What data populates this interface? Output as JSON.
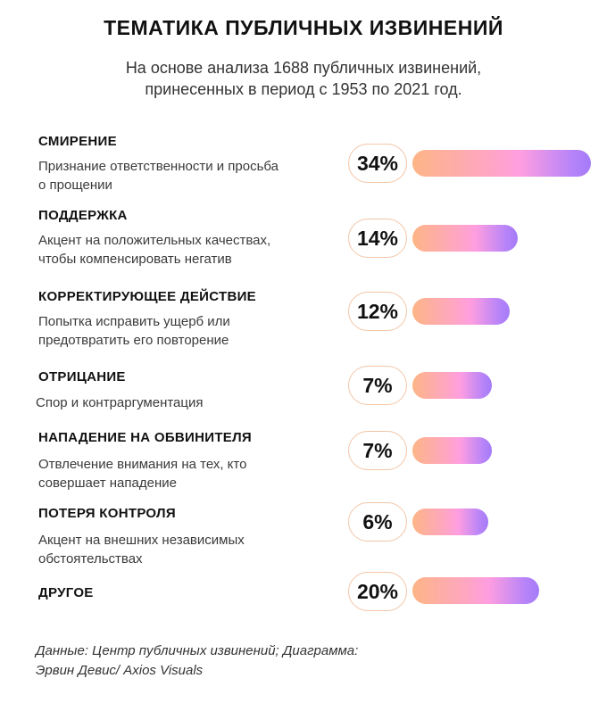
{
  "header": {
    "title": "ТЕМАТИКА ПУБЛИЧНЫХ ИЗВИНЕНИЙ",
    "subtitle_line1": "На основе анализа 1688 публичных извинений,",
    "subtitle_line2": "принесенных в период с 1953 по 2021 год."
  },
  "chart_data": {
    "type": "bar",
    "title": "ТЕМАТИКА ПУБЛИЧНЫХ ИЗВИНЕНИЙ",
    "xlim": [
      0,
      34
    ],
    "categories": [
      {
        "name": "СМИРЕНИЕ",
        "description": "Признание ответственности и просьба о прощении",
        "desc_line1": "Признание ответственности и просьба",
        "desc_line2": "о прощении",
        "value": 34,
        "label": "34%"
      },
      {
        "name": "ПОДДЕРЖКА",
        "description": "Акцент на положительных качествах, чтобы компенсировать негатив",
        "desc_line1": "Акцент на положительных качествах,",
        "desc_line2": "чтобы компенсировать негатив",
        "value": 14,
        "label": "14%"
      },
      {
        "name": "КОРРЕКТИРУЮЩЕЕ ДЕЙСТВИЕ",
        "description": "Попытка исправить ущерб или предотвратить его повторение",
        "desc_line1": "Попытка исправить ущерб или",
        "desc_line2": "предотвратить его повторение",
        "value": 12,
        "label": "12%"
      },
      {
        "name": "ОТРИЦАНИЕ",
        "description": "Спор и контраргументация",
        "desc_line1": "Спор и контраргументация",
        "desc_line2": "",
        "value": 7,
        "label": "7%"
      },
      {
        "name": "НАПАДЕНИЕ НА ОБВИНИТЕЛЯ",
        "description": "Отвлечение внимания на тех, кто совершает нападение",
        "desc_line1": "Отвлечение внимания на тех, кто",
        "desc_line2": "совершает нападение",
        "value": 7,
        "label": "7%"
      },
      {
        "name": "ПОТЕРЯ КОНТРОЛЯ",
        "description": "Акцент на внешних независимых обстоятельствах",
        "desc_line1": "Акцент на внешних независимых",
        "desc_line2": "обстоятельствах",
        "value": 6,
        "label": "6%"
      },
      {
        "name": "ДРУГОЕ",
        "description": "",
        "desc_line1": "",
        "desc_line2": "",
        "value": 20,
        "label": "20%"
      }
    ]
  },
  "footer": {
    "source_line1": "Данные: Центр публичных извинений; Диаграмма:",
    "source_line2": "Эрвин Девис/ Axios Visuals"
  }
}
